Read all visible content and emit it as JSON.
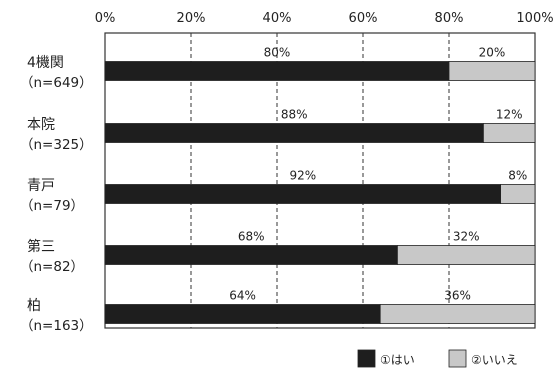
{
  "chart_data": {
    "type": "bar",
    "orientation": "horizontal",
    "stacked": true,
    "xlim": [
      0,
      100
    ],
    "xticks": [
      "0%",
      "20%",
      "40%",
      "60%",
      "80%",
      "100%"
    ],
    "grid": "vertical dashed",
    "legend_placement": "bottom-right",
    "categories": [
      {
        "name": "4機関",
        "n": "（n=649）"
      },
      {
        "name": "本院",
        "n": "（n=325）"
      },
      {
        "name": "青戸",
        "n": "（n=79）"
      },
      {
        "name": "第三",
        "n": "（n=82）"
      },
      {
        "name": "柏",
        "n": "（n=163）"
      }
    ],
    "series": [
      {
        "name": "①はい",
        "color": "#1e1e1e",
        "values": [
          80,
          88,
          92,
          68,
          64
        ],
        "labels": [
          "80%",
          "88%",
          "92%",
          "68%",
          "64%"
        ]
      },
      {
        "name": "②いいえ",
        "color": "#c8c8c8",
        "values": [
          20,
          12,
          8,
          32,
          36
        ],
        "labels": [
          "20%",
          "12%",
          "8%",
          "32%",
          "36%"
        ]
      }
    ]
  }
}
